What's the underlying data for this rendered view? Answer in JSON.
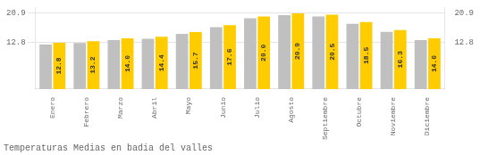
{
  "chart_data": {
    "type": "bar",
    "title": "Temperaturas Medias en badia del valles",
    "categories": [
      "Enero",
      "Febrero",
      "Marzo",
      "Abril",
      "Mayo",
      "Junio",
      "Julio",
      "Agosto",
      "Septiembre",
      "Octubre",
      "Noviembre",
      "Diciembre"
    ],
    "series": [
      {
        "color": "#C0C0C0",
        "values": [
          12.3,
          12.7,
          13.5,
          13.9,
          15.2,
          17.1,
          19.5,
          20.4,
          20.0,
          18.0,
          15.8,
          13.5
        ]
      },
      {
        "color": "#FFCC00",
        "values": [
          12.8,
          13.2,
          14.0,
          14.4,
          15.7,
          17.6,
          20.0,
          20.9,
          20.5,
          18.5,
          16.3,
          14.0
        ],
        "data_labels": true,
        "value_labels": [
          "12.8",
          "13.2",
          "14.0",
          "14.4",
          "15.7",
          "17.6",
          "20.0",
          "20.9",
          "20.5",
          "18.5",
          "16.3",
          "14.0"
        ]
      }
    ],
    "ylim": [
      0,
      22.5
    ],
    "yticks": [
      12.8,
      20.9
    ],
    "y2lim": [
      0,
      22.5
    ],
    "y2ticks": [
      12.8,
      20.9
    ],
    "grid": true
  }
}
